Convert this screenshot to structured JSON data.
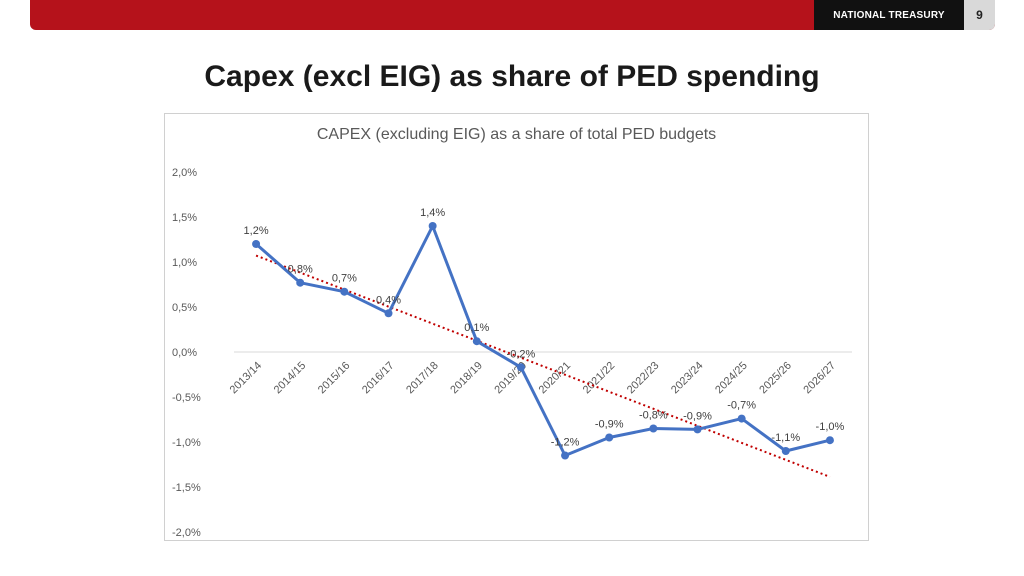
{
  "header": {
    "brand": "NATIONAL TREASURY",
    "page_number": "9",
    "band_color": "#b5121b"
  },
  "slide_title": "Capex (excl EIG) as share of PED spending",
  "chart_data": {
    "type": "line",
    "title": "CAPEX (excluding EIG) as a share of total PED budgets",
    "xlabel": "",
    "ylabel": "",
    "categories": [
      "2013/14",
      "2014/15",
      "2015/16",
      "2016/17",
      "2017/18",
      "2018/19",
      "2019/20",
      "2020/21",
      "2021/22",
      "2022/23",
      "2023/24",
      "2024/25",
      "2025/26",
      "2026/27"
    ],
    "series": [
      {
        "values": [
          1.2,
          0.77,
          0.67,
          0.43,
          1.4,
          0.12,
          -0.17,
          -1.15,
          -0.95,
          -0.85,
          -0.86,
          -0.74,
          -1.1,
          -0.98
        ],
        "data_labels": [
          "1,2%",
          "0,8%",
          "0,7%",
          "0,4%",
          "1,4%",
          "0,1%",
          "-0,2%",
          "-1,2%",
          "-0,9%",
          "-0,8%",
          "-0,9%",
          "-0,7%",
          "-1,1%",
          "-1,0%"
        ],
        "color": "#4472c4"
      }
    ],
    "trendline": {
      "type": "linear",
      "style": "dotted",
      "color": "#c00000"
    },
    "y_ticks": [
      2.0,
      1.5,
      1.0,
      0.5,
      0.0,
      -0.5,
      -1.0,
      -1.5,
      -2.0
    ],
    "y_tick_labels": [
      "2,0%",
      "1,5%",
      "1,0%",
      "0,5%",
      "0,0%",
      "-0,5%",
      "-1,0%",
      "-1,5%",
      "-2,0%"
    ],
    "ylim": [
      -2.0,
      2.0
    ],
    "grid": false,
    "legend": "none"
  }
}
